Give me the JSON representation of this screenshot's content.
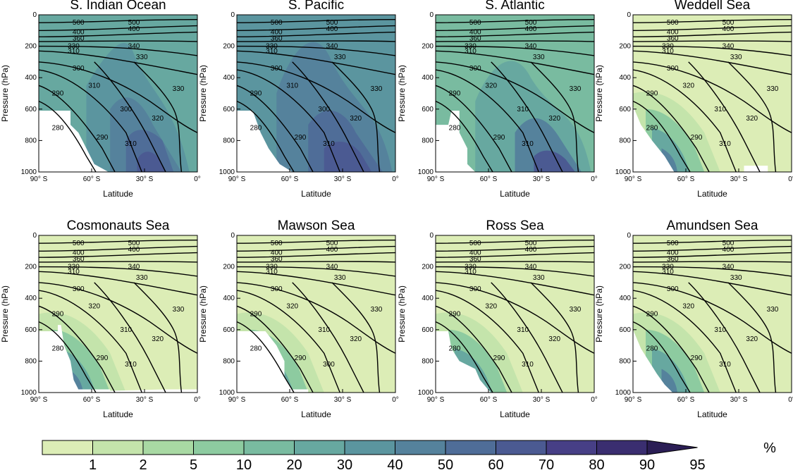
{
  "chart_data": {
    "type": "contour",
    "xlabel": "Latitude",
    "ylabel": "Pressure (hPa)",
    "x_ticks": [
      "90° S",
      "60° S",
      "30° S",
      "0°"
    ],
    "x_range": [
      -90,
      0
    ],
    "y_ticks": [
      "0",
      "200",
      "400",
      "600",
      "800",
      "1000"
    ],
    "y_range": [
      1000,
      0
    ],
    "colorbar": {
      "levels": [
        "1",
        "2",
        "5",
        "10",
        "20",
        "30",
        "40",
        "50",
        "60",
        "70",
        "80",
        "90",
        "95"
      ],
      "unit": "%",
      "colors": [
        "#dcedb6",
        "#c4e4ab",
        "#a8d9a3",
        "#8dcba0",
        "#79bba0",
        "#67a8a0",
        "#5b959f",
        "#55829c",
        "#4f6d98",
        "#4b5a92",
        "#473f86",
        "#3a2e70",
        "#2b1e55"
      ]
    },
    "panels": [
      {
        "title": "S. Indian Ocean",
        "contour_labels": [
          "500",
          "500",
          "400",
          "400",
          "360",
          "340",
          "330",
          "310",
          "330",
          "300",
          "310",
          "330",
          "290",
          "300",
          "320",
          "280",
          "290",
          "310"
        ]
      },
      {
        "title": "S. Pacific",
        "contour_labels": [
          "500",
          "500",
          "400",
          "400",
          "360",
          "340",
          "330",
          "310",
          "330",
          "300",
          "310",
          "330",
          "290",
          "300",
          "320",
          "280",
          "290",
          "310"
        ]
      },
      {
        "title": "S. Atlantic",
        "contour_labels": [
          "500",
          "500",
          "400",
          "400",
          "360",
          "340",
          "330",
          "310",
          "330",
          "300",
          "320",
          "330",
          "290",
          "310",
          "320",
          "280",
          "290",
          "310"
        ]
      },
      {
        "title": "Weddell Sea",
        "contour_labels": [
          "500",
          "500",
          "400",
          "400",
          "360",
          "340",
          "330",
          "310",
          "330",
          "300",
          "320",
          "330",
          "290",
          "310",
          "320",
          "280",
          "290",
          "310"
        ]
      },
      {
        "title": "Cosmonauts Sea",
        "contour_labels": [
          "500",
          "500",
          "400",
          "400",
          "360",
          "340",
          "330",
          "310",
          "330",
          "300",
          "320",
          "330",
          "290",
          "310",
          "320",
          "280",
          "290",
          "310"
        ]
      },
      {
        "title": "Mawson Sea",
        "contour_labels": [
          "500",
          "500",
          "400",
          "400",
          "360",
          "340",
          "330",
          "310",
          "330",
          "300",
          "320",
          "330",
          "290",
          "310",
          "320",
          "280",
          "290",
          "300"
        ]
      },
      {
        "title": "Ross Sea",
        "contour_labels": [
          "500",
          "500",
          "400",
          "400",
          "360",
          "340",
          "330",
          "310",
          "330",
          "300",
          "320",
          "330",
          "290",
          "310",
          "320",
          "280",
          "290",
          "310"
        ]
      },
      {
        "title": "Amundsen Sea",
        "contour_labels": [
          "500",
          "500",
          "400",
          "400",
          "360",
          "340",
          "330",
          "310",
          "330",
          "300",
          "320",
          "330",
          "290",
          "310",
          "320",
          "280",
          "290",
          "310"
        ]
      }
    ]
  }
}
